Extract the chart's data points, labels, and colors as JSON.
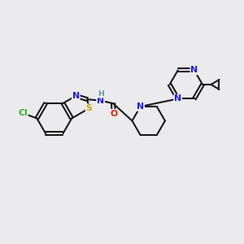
{
  "background_color": "#ebebee",
  "fig_size": [
    3.0,
    3.0
  ],
  "dpi": 100,
  "bond_color": "#1a1a1a",
  "bond_lw": 1.5,
  "atom_colors": {
    "N": "#1a1aee",
    "S": "#ccaa00",
    "O": "#ee2200",
    "Cl": "#22bb22",
    "H": "#6699aa"
  },
  "font_size": 7.8
}
